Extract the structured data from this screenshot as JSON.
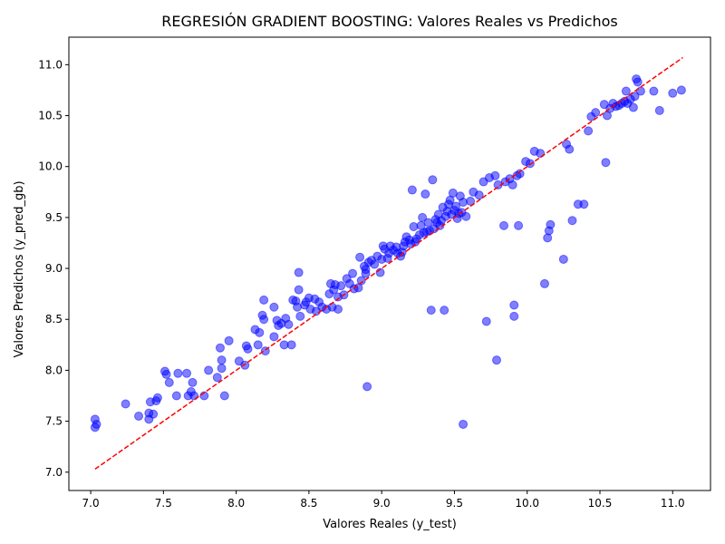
{
  "chart_data": {
    "type": "scatter",
    "title": "REGRESIÓN GRADIENT BOOSTING: Valores Reales vs Predichos",
    "xlabel": "Valores Reales (y_test)",
    "ylabel": "Valores Predichos (y_pred_gb)",
    "xlim": [
      6.85,
      11.26
    ],
    "ylim": [
      6.82,
      11.27
    ],
    "x_ticks": [
      "7.0",
      "7.5",
      "8.0",
      "8.5",
      "9.0",
      "9.5",
      "10.0",
      "10.5",
      "11.0"
    ],
    "y_ticks": [
      "7.0",
      "7.5",
      "8.0",
      "8.5",
      "9.0",
      "9.5",
      "10.0",
      "10.5",
      "11.0"
    ],
    "grid": false,
    "colors": {
      "points": "#0000ff",
      "reference_line": "#ff0000",
      "axes": "#000000"
    },
    "reference_line": {
      "style": "dashed",
      "from": [
        7.03,
        7.03
      ],
      "to": [
        11.07,
        11.07
      ]
    },
    "points": [
      [
        7.03,
        7.44
      ],
      [
        7.04,
        7.47
      ],
      [
        7.03,
        7.52
      ],
      [
        7.24,
        7.67
      ],
      [
        7.33,
        7.55
      ],
      [
        7.4,
        7.52
      ],
      [
        7.4,
        7.58
      ],
      [
        7.41,
        7.69
      ],
      [
        7.43,
        7.57
      ],
      [
        7.45,
        7.7
      ],
      [
        7.46,
        7.73
      ],
      [
        7.51,
        7.99
      ],
      [
        7.52,
        7.96
      ],
      [
        7.54,
        7.88
      ],
      [
        7.59,
        7.75
      ],
      [
        7.6,
        7.97
      ],
      [
        7.66,
        7.97
      ],
      [
        7.67,
        7.75
      ],
      [
        7.69,
        7.79
      ],
      [
        7.7,
        7.88
      ],
      [
        7.71,
        7.75
      ],
      [
        7.78,
        7.75
      ],
      [
        7.81,
        8.0
      ],
      [
        7.87,
        7.93
      ],
      [
        7.89,
        8.22
      ],
      [
        7.9,
        8.02
      ],
      [
        7.9,
        8.1
      ],
      [
        7.92,
        7.75
      ],
      [
        7.95,
        8.29
      ],
      [
        8.02,
        8.09
      ],
      [
        8.06,
        8.05
      ],
      [
        8.07,
        8.24
      ],
      [
        8.08,
        8.21
      ],
      [
        8.13,
        8.4
      ],
      [
        8.15,
        8.25
      ],
      [
        8.16,
        8.37
      ],
      [
        8.18,
        8.54
      ],
      [
        8.19,
        8.69
      ],
      [
        8.19,
        8.5
      ],
      [
        8.2,
        8.19
      ],
      [
        8.26,
        8.33
      ],
      [
        8.26,
        8.62
      ],
      [
        8.28,
        8.49
      ],
      [
        8.29,
        8.44
      ],
      [
        8.31,
        8.46
      ],
      [
        8.33,
        8.25
      ],
      [
        8.34,
        8.51
      ],
      [
        8.36,
        8.45
      ],
      [
        8.38,
        8.25
      ],
      [
        8.39,
        8.69
      ],
      [
        8.41,
        8.68
      ],
      [
        8.42,
        8.62
      ],
      [
        8.43,
        8.96
      ],
      [
        8.43,
        8.79
      ],
      [
        8.44,
        8.53
      ],
      [
        8.47,
        8.64
      ],
      [
        8.48,
        8.67
      ],
      [
        8.5,
        8.71
      ],
      [
        8.51,
        8.6
      ],
      [
        8.54,
        8.7
      ],
      [
        8.55,
        8.58
      ],
      [
        8.57,
        8.67
      ],
      [
        8.59,
        8.62
      ],
      [
        8.62,
        8.6
      ],
      [
        8.64,
        8.75
      ],
      [
        8.65,
        8.85
      ],
      [
        8.66,
        8.62
      ],
      [
        8.67,
        8.79
      ],
      [
        8.68,
        8.84
      ],
      [
        8.7,
        8.72
      ],
      [
        8.7,
        8.6
      ],
      [
        8.72,
        8.83
      ],
      [
        8.74,
        8.74
      ],
      [
        8.76,
        8.9
      ],
      [
        8.78,
        8.85
      ],
      [
        8.8,
        8.95
      ],
      [
        8.81,
        8.8
      ],
      [
        8.84,
        8.81
      ],
      [
        8.85,
        9.11
      ],
      [
        8.86,
        8.88
      ],
      [
        8.88,
        9.02
      ],
      [
        8.89,
        8.95
      ],
      [
        8.89,
        8.99
      ],
      [
        8.9,
        7.84
      ],
      [
        8.91,
        9.06
      ],
      [
        8.93,
        9.08
      ],
      [
        8.95,
        9.04
      ],
      [
        8.97,
        9.12
      ],
      [
        8.99,
        8.96
      ],
      [
        9.0,
        9.09
      ],
      [
        9.01,
        9.22
      ],
      [
        9.02,
        9.19
      ],
      [
        9.04,
        9.1
      ],
      [
        9.05,
        9.15
      ],
      [
        9.06,
        9.22
      ],
      [
        9.08,
        9.18
      ],
      [
        9.1,
        9.21
      ],
      [
        9.11,
        9.15
      ],
      [
        9.13,
        9.12
      ],
      [
        9.14,
        9.16
      ],
      [
        9.15,
        9.22
      ],
      [
        9.16,
        9.26
      ],
      [
        9.17,
        9.31
      ],
      [
        9.19,
        9.28
      ],
      [
        9.2,
        9.24
      ],
      [
        9.21,
        9.77
      ],
      [
        9.22,
        9.41
      ],
      [
        9.23,
        9.26
      ],
      [
        9.24,
        9.29
      ],
      [
        9.26,
        9.33
      ],
      [
        9.27,
        9.42
      ],
      [
        9.28,
        9.5
      ],
      [
        9.29,
        9.35
      ],
      [
        9.3,
        9.73
      ],
      [
        9.31,
        9.36
      ],
      [
        9.32,
        9.45
      ],
      [
        9.33,
        9.37
      ],
      [
        9.34,
        8.59
      ],
      [
        9.35,
        9.87
      ],
      [
        9.36,
        9.39
      ],
      [
        9.37,
        9.48
      ],
      [
        9.38,
        9.45
      ],
      [
        9.39,
        9.53
      ],
      [
        9.4,
        9.42
      ],
      [
        9.41,
        9.47
      ],
      [
        9.42,
        9.6
      ],
      [
        9.43,
        8.59
      ],
      [
        9.44,
        9.51
      ],
      [
        9.45,
        9.56
      ],
      [
        9.46,
        9.63
      ],
      [
        9.47,
        9.67
      ],
      [
        9.48,
        9.53
      ],
      [
        9.49,
        9.74
      ],
      [
        9.5,
        9.57
      ],
      [
        9.51,
        9.61
      ],
      [
        9.52,
        9.49
      ],
      [
        9.53,
        9.54
      ],
      [
        9.54,
        9.71
      ],
      [
        9.55,
        9.55
      ],
      [
        9.56,
        9.65
      ],
      [
        9.56,
        7.47
      ],
      [
        9.58,
        9.51
      ],
      [
        9.61,
        9.66
      ],
      [
        9.63,
        9.75
      ],
      [
        9.67,
        9.72
      ],
      [
        9.7,
        9.85
      ],
      [
        9.72,
        8.48
      ],
      [
        9.74,
        9.89
      ],
      [
        9.78,
        9.91
      ],
      [
        9.79,
        8.1
      ],
      [
        9.8,
        9.82
      ],
      [
        9.84,
        9.42
      ],
      [
        9.85,
        9.85
      ],
      [
        9.88,
        9.88
      ],
      [
        9.9,
        9.82
      ],
      [
        9.91,
        8.64
      ],
      [
        9.91,
        8.53
      ],
      [
        9.93,
        9.91
      ],
      [
        9.94,
        9.42
      ],
      [
        9.95,
        9.93
      ],
      [
        9.99,
        10.05
      ],
      [
        10.02,
        10.03
      ],
      [
        10.05,
        10.15
      ],
      [
        10.09,
        10.13
      ],
      [
        10.12,
        8.85
      ],
      [
        10.14,
        9.3
      ],
      [
        10.15,
        9.37
      ],
      [
        10.16,
        9.43
      ],
      [
        10.25,
        9.09
      ],
      [
        10.27,
        10.22
      ],
      [
        10.29,
        10.17
      ],
      [
        10.31,
        9.47
      ],
      [
        10.35,
        9.63
      ],
      [
        10.39,
        9.63
      ],
      [
        10.42,
        10.35
      ],
      [
        10.44,
        10.49
      ],
      [
        10.47,
        10.53
      ],
      [
        10.53,
        10.61
      ],
      [
        10.54,
        10.04
      ],
      [
        10.55,
        10.5
      ],
      [
        10.57,
        10.57
      ],
      [
        10.59,
        10.62
      ],
      [
        10.61,
        10.59
      ],
      [
        10.63,
        10.6
      ],
      [
        10.65,
        10.62
      ],
      [
        10.67,
        10.64
      ],
      [
        10.68,
        10.74
      ],
      [
        10.69,
        10.62
      ],
      [
        10.71,
        10.66
      ],
      [
        10.73,
        10.58
      ],
      [
        10.74,
        10.69
      ],
      [
        10.75,
        10.86
      ],
      [
        10.76,
        10.83
      ],
      [
        10.78,
        10.74
      ],
      [
        10.87,
        10.74
      ],
      [
        10.91,
        10.55
      ],
      [
        11.0,
        10.72
      ],
      [
        11.06,
        10.75
      ]
    ]
  }
}
